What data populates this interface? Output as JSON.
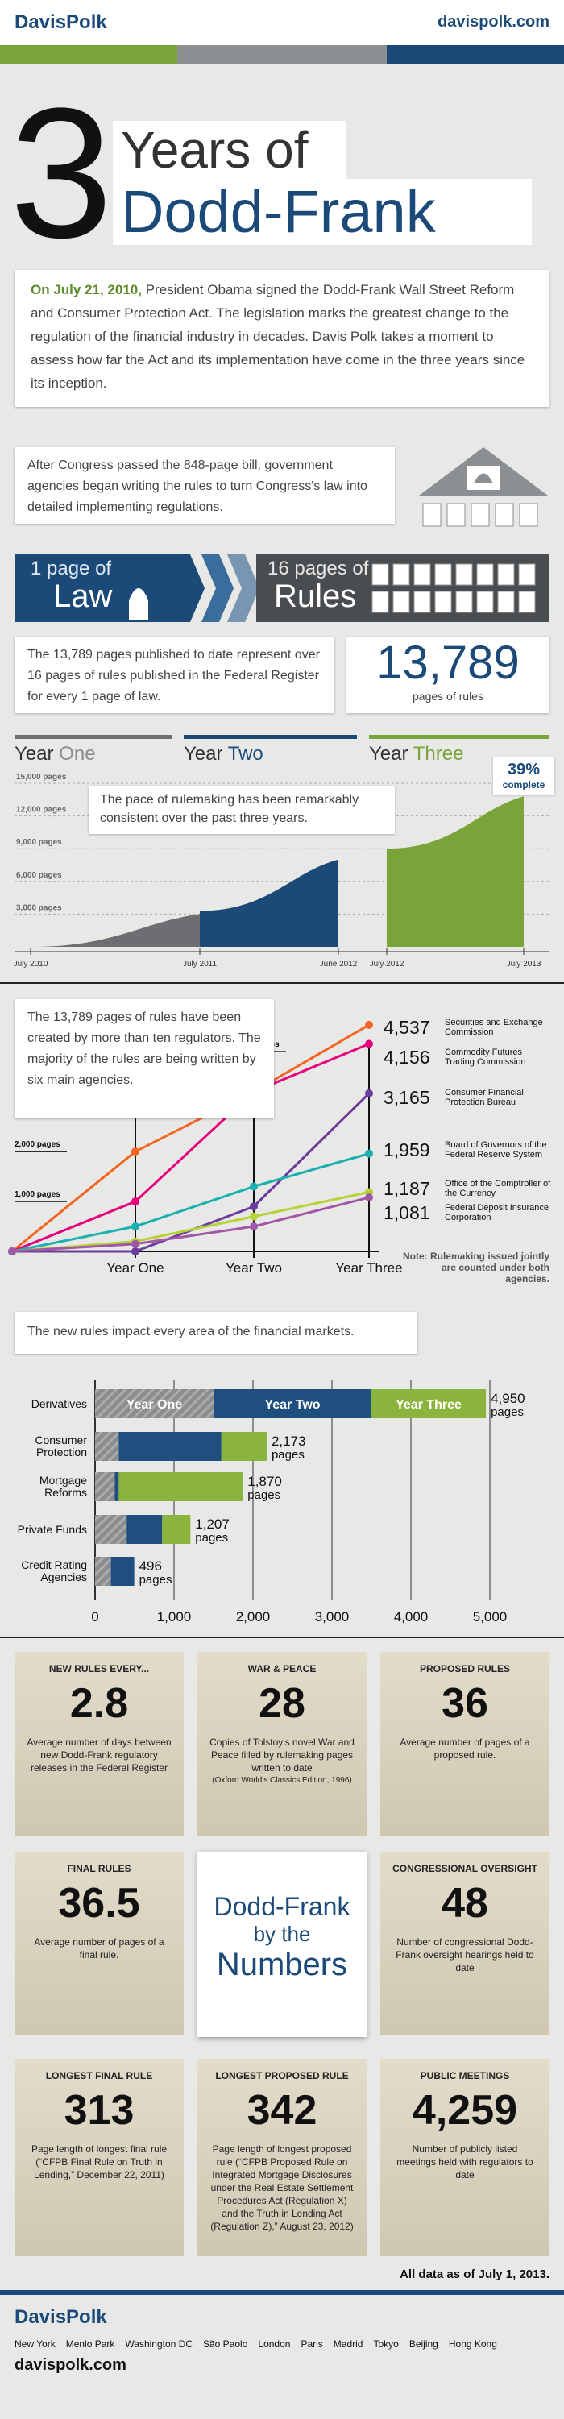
{
  "header": {
    "brand": "DavisPolk",
    "url": "davispolk.com"
  },
  "title": {
    "number": "3",
    "line1": "Years of",
    "line2": "Dodd-Frank"
  },
  "intro": {
    "date": "On July 21, 2010,",
    "text": " President Obama signed the Dodd-Frank Wall Street Reform and Consumer Protection Act. The legislation marks the greatest change to the regulation of the financial industry in decades. Davis Polk takes a moment to assess how far the Act and its implementation have come in the three years since its inception."
  },
  "rulemaking_note": "After Congress passed the 848-page bill, government agencies began writing the rules to turn Congress's law into detailed implementing regulations.",
  "banner": {
    "left_small": "1 page of",
    "left_big": "Law",
    "right_small": "16 pages of",
    "right_big": "Rules"
  },
  "pages_note": "The 13,789 pages published to date represent over 16 pages of rules published in the Federal Register for every 1 page of law.",
  "pages_total": {
    "value": "13,789",
    "label": "pages of rules"
  },
  "timeline_chart": {
    "type": "area",
    "year_headers": [
      {
        "prefix": "Year",
        "name": "One",
        "color": "#8a8c8e"
      },
      {
        "prefix": "Year",
        "name": "Two",
        "color": "#1e4f7f"
      },
      {
        "prefix": "Year",
        "name": "Three",
        "color": "#7aa33a"
      }
    ],
    "ylim": [
      0,
      15000
    ],
    "yticks": [
      {
        "value": 3000,
        "label": "3,000 pages"
      },
      {
        "value": 6000,
        "label": "6,000 pages"
      },
      {
        "value": 9000,
        "label": "9,000 pages"
      },
      {
        "value": 12000,
        "label": "12,000 pages"
      },
      {
        "value": 15000,
        "label": "15,000 pages"
      }
    ],
    "xticks": [
      "July 2010",
      "July 2011",
      "June 2012",
      "July 2012",
      "July 2013"
    ],
    "series": [
      {
        "color": "#6d6e71",
        "x": [
          "July 2010",
          "July 2011"
        ],
        "values": [
          0,
          3000
        ]
      },
      {
        "color": "#1b4a78",
        "x": [
          "July 2011",
          "June 2012"
        ],
        "values": [
          3300,
          8000
        ]
      },
      {
        "color": "#7aa33a",
        "x": [
          "July 2012",
          "July 2013"
        ],
        "values": [
          9000,
          13789
        ]
      }
    ],
    "badge": {
      "text": "39%",
      "label": "complete"
    },
    "callout": "The pace of rulemaking has been remarkably consistent over the past three years."
  },
  "agency_chart": {
    "type": "line",
    "note_box": "The 13,789 pages of rules have been created by more than ten regulators. The majority of the rules are being written by six main agencies.",
    "categories": [
      null,
      "Year One",
      "Year Two",
      "Year Three"
    ],
    "ylim": [
      0,
      4600
    ],
    "yticks": [
      {
        "value": 1000,
        "label": "1,000 pages"
      },
      {
        "value": 2000,
        "label": "2,000 pages"
      },
      {
        "value": 4000,
        "label": "4,000 pages"
      }
    ],
    "series": [
      {
        "name": "Securities and Exchange Commission",
        "color": "#f26522",
        "values": [
          0,
          2000,
          3200,
          4537
        ],
        "value_labels": [
          null,
          null,
          null,
          "4,537"
        ]
      },
      {
        "name": "Commodity Futures Trading Commission",
        "color": "#e5007e",
        "values": [
          0,
          1000,
          3200,
          4156
        ],
        "value_labels": [
          null,
          null,
          null,
          "4,156"
        ]
      },
      {
        "name": "Consumer Financial Protection Bureau",
        "color": "#6a3d9a",
        "values": [
          0,
          0,
          900,
          3165
        ],
        "value_labels": [
          null,
          null,
          null,
          "3,165"
        ]
      },
      {
        "name": "Board of Governors of the Federal Reserve System",
        "color": "#1ab0b0",
        "values": [
          0,
          500,
          1300,
          1959
        ],
        "value_labels": [
          null,
          null,
          null,
          "1,959"
        ]
      },
      {
        "name": "Office of the Comptroller of the Currency",
        "color": "#b5d334",
        "values": [
          0,
          200,
          700,
          1187
        ],
        "value_labels": [
          null,
          null,
          null,
          "1,187"
        ]
      },
      {
        "name": "Federal Deposit Insurance Corporation",
        "color": "#a157a8",
        "values": [
          0,
          150,
          500,
          1081
        ],
        "value_labels": [
          null,
          null,
          null,
          "1,081"
        ]
      }
    ],
    "note": "Note: Rulemaking issued jointly are counted under both agencies."
  },
  "impact_chart": {
    "type": "bar",
    "orientation": "horizontal",
    "stacked": true,
    "heading": "The new rules impact every area of the financial markets.",
    "categories": [
      "Derivatives",
      "Consumer Protection",
      "Mortgage Reforms",
      "Private Funds",
      "Credit Rating Agencies"
    ],
    "series": [
      {
        "name": "Year One",
        "color": "#8a8c8e",
        "values": [
          1500,
          300,
          250,
          400,
          200
        ]
      },
      {
        "name": "Year Two",
        "color": "#1e4f7f",
        "values": [
          2000,
          1300,
          50,
          450,
          296
        ]
      },
      {
        "name": "Year Three",
        "color": "#8cb43c",
        "values": [
          1450,
          573,
          1570,
          357,
          0
        ]
      }
    ],
    "totals": {
      "values": [
        4950,
        2173,
        1870,
        1207,
        496
      ],
      "value_labels": [
        "4,950",
        "2,173",
        "1,870",
        "1,207",
        "496"
      ],
      "unit": "pages"
    },
    "xlim": [
      0,
      5000
    ],
    "xticks": [
      0,
      {
        "value": 1000,
        "label": "1,000"
      },
      {
        "value": 2000,
        "label": "2,000"
      },
      {
        "value": 3000,
        "label": "3,000"
      },
      {
        "value": 4000,
        "label": "4,000"
      },
      {
        "value": 5000,
        "label": "5,000"
      }
    ]
  },
  "stats": [
    {
      "title": "NEW RULES EVERY...",
      "value": "2.8",
      "text": "Average number of days between new Dodd-Frank regulatory releases in the Federal Register"
    },
    {
      "title": "WAR & PEACE",
      "value": "28",
      "text": "Copies of Tolstoy's novel War and Peace filled by rulemaking pages written to date",
      "source": "(Oxford World's Classics Edition, 1996)"
    },
    {
      "title": "PROPOSED RULES",
      "value": "36",
      "text": "Average number of pages of a proposed rule."
    },
    {
      "title": "FINAL RULES",
      "value": "36.5",
      "text": "Average number of pages of a final rule."
    },
    {
      "title": "CONGRESSIONAL OVERSIGHT",
      "value": "48",
      "text": "Number of congressional Dodd-Frank oversight hearings held to date"
    },
    {
      "title": "LONGEST FINAL RULE",
      "value": "313",
      "text": "Page length of longest final rule (“CFPB Final Rule on Truth in Lending,” December 22, 2011)"
    },
    {
      "title": "LONGEST PROPOSED RULE",
      "value": "342",
      "text": "Page length of longest proposed rule (“CFPB Proposed Rule on Integrated Mortgage Disclosures under the Real Estate Settlement Procedures Act (Regulation X) and the Truth in Lending Act (Regulation Z),” August 23, 2012)"
    },
    {
      "title": "PUBLIC MEETINGS",
      "value": "4,259",
      "text": "Number of publicly listed meetings held with regulators to date"
    }
  ],
  "numbers_card": {
    "line1": "Dodd-Frank",
    "line2": "by the",
    "line3": "Numbers"
  },
  "as_of": "All data as of July 1, 2013.",
  "footer": {
    "brand": "DavisPolk",
    "cities": [
      "New York",
      "Menlo Park",
      "Washington DC",
      "São Paolo",
      "London",
      "Paris",
      "Madrid",
      "Tokyo",
      "Beijing",
      "Hong Kong"
    ],
    "url": "davispolk.com"
  }
}
